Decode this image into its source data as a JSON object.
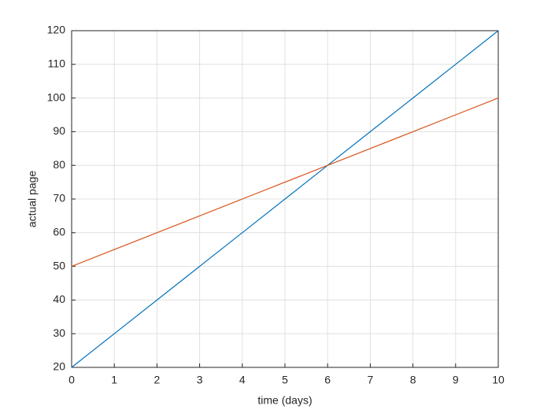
{
  "chart_data": {
    "type": "line",
    "xlabel": "time (days)",
    "ylabel": "actual page",
    "x": [
      0,
      1,
      2,
      3,
      4,
      5,
      6,
      7,
      8,
      9,
      10
    ],
    "series": [
      {
        "color": "#0072bd",
        "values": [
          20,
          30,
          40,
          50,
          60,
          70,
          80,
          90,
          100,
          110,
          120
        ]
      },
      {
        "color": "#d95319",
        "values": [
          50,
          55,
          60,
          65,
          70,
          75,
          80,
          85,
          90,
          95,
          100
        ]
      }
    ],
    "xlim": [
      0,
      10
    ],
    "xticks": [
      0,
      1,
      2,
      3,
      4,
      5,
      6,
      7,
      8,
      9,
      10
    ],
    "ylim": [
      20,
      120
    ],
    "yticks": [
      20,
      30,
      40,
      50,
      60,
      70,
      80,
      90,
      100,
      110,
      120
    ],
    "grid": true
  }
}
